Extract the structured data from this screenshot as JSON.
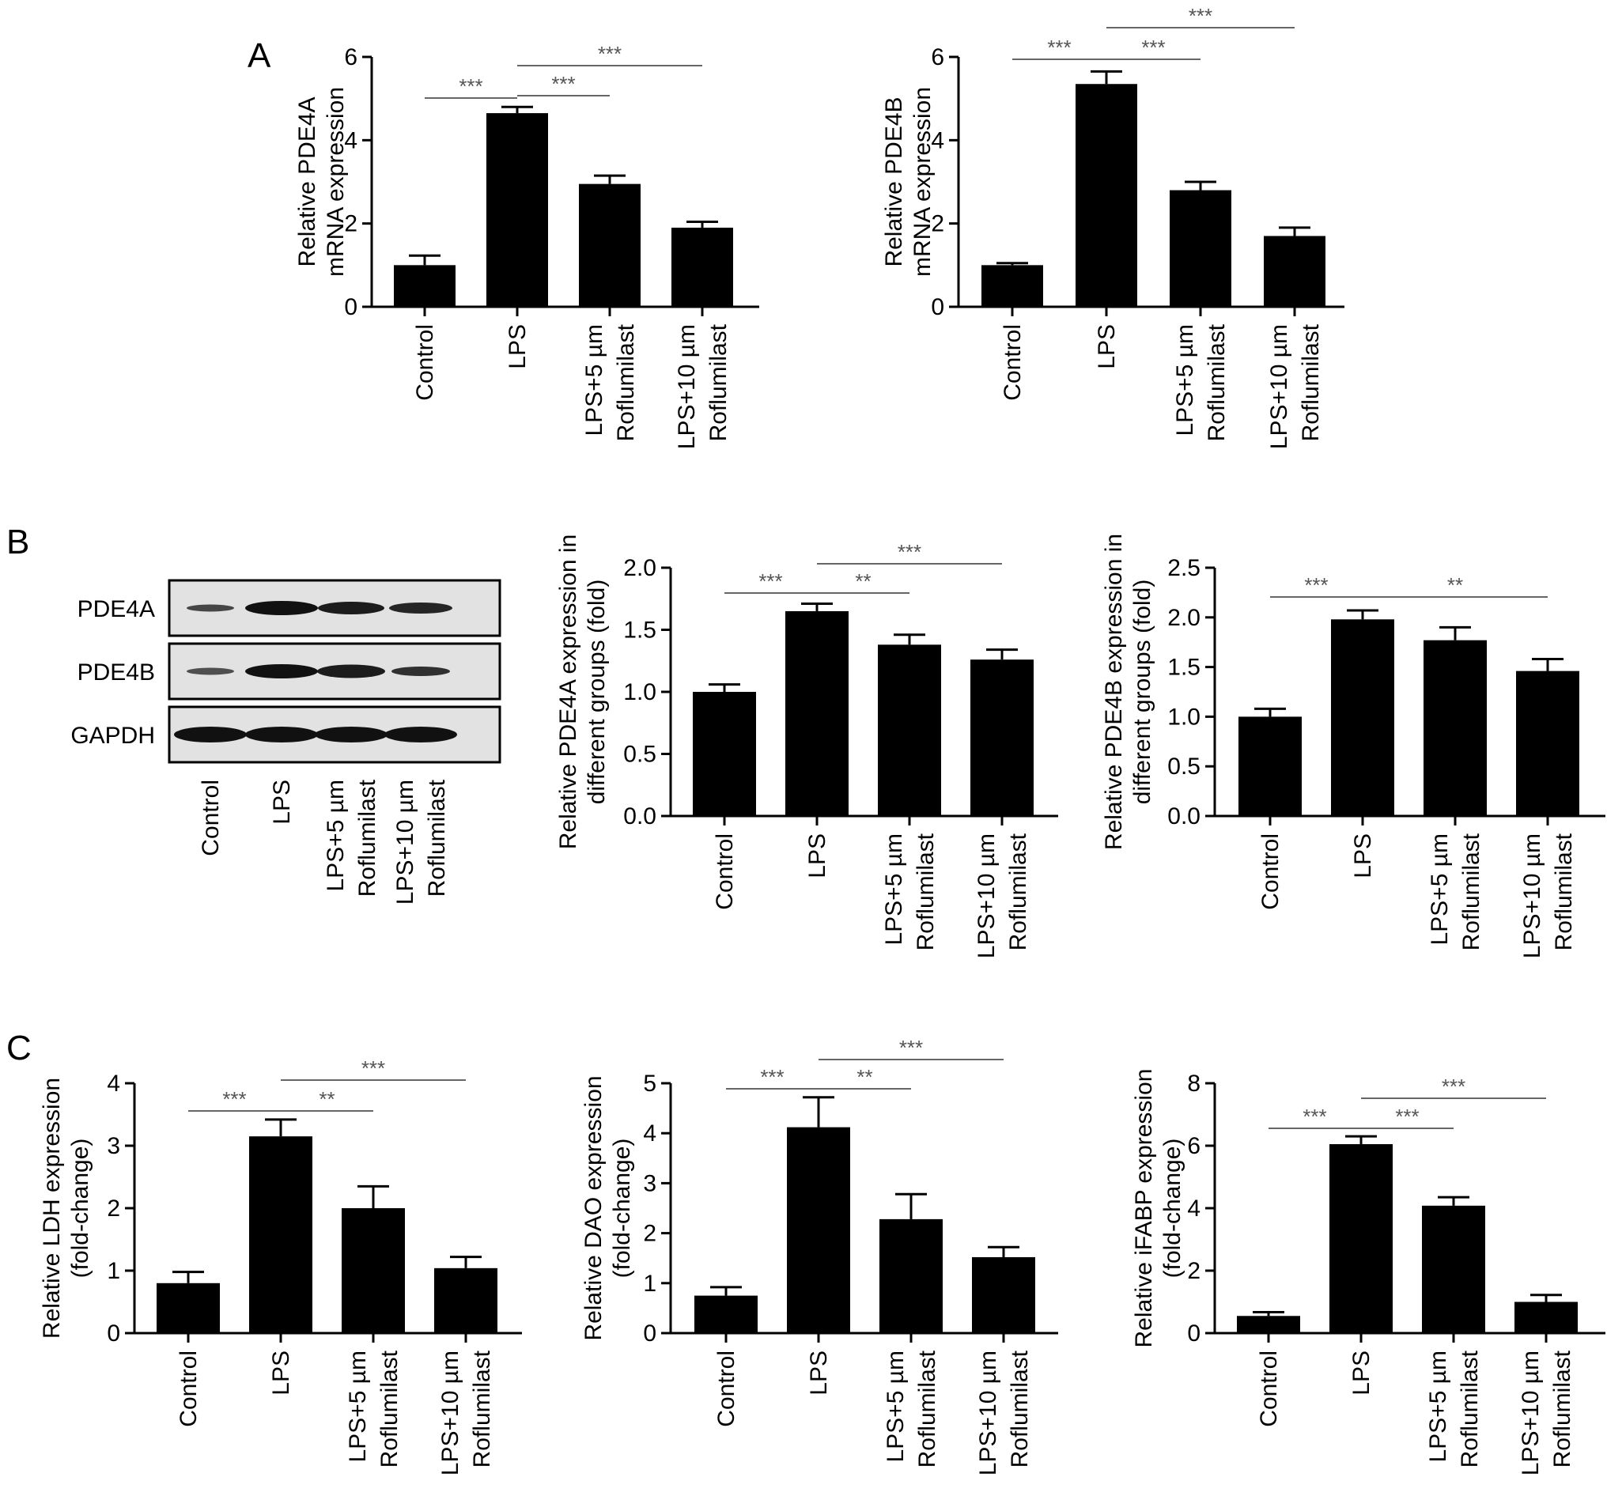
{
  "panel_labels": [
    "A",
    "B",
    "C"
  ],
  "western_blot": {
    "proteins": [
      "PDE4A",
      "PDE4B",
      "GAPDH"
    ],
    "lanes": [
      "Control",
      "LPS",
      "LPS+5 µm\nRoflumilast",
      "LPS+10 µm\nRoflumilast"
    ]
  },
  "chart_data": [
    {
      "id": "A1",
      "type": "bar",
      "categories": [
        "Control",
        "LPS",
        "LPS+5 µm\nRoflumilast",
        "LPS+10 µm\nRoflumilast"
      ],
      "values": [
        1.0,
        4.65,
        2.95,
        1.9
      ],
      "errors": [
        0.23,
        0.15,
        0.2,
        0.14
      ],
      "ylabel": "Relative PDE4A\nmRNA expression",
      "ylim": [
        0,
        6
      ],
      "yticks": [
        0,
        2,
        4,
        6
      ],
      "tick_decimals": 0,
      "significance": [
        {
          "from": 0,
          "to": 1,
          "label": "***"
        },
        {
          "from": 1,
          "to": 2,
          "label": "***"
        },
        {
          "from": 1,
          "to": 3,
          "label": "***"
        }
      ]
    },
    {
      "id": "A2",
      "type": "bar",
      "categories": [
        "Control",
        "LPS",
        "LPS+5 µm\nRoflumilast",
        "LPS+10 µm\nRoflumilast"
      ],
      "values": [
        1.0,
        5.35,
        2.8,
        1.7
      ],
      "errors": [
        0.05,
        0.3,
        0.2,
        0.2
      ],
      "ylabel": "Relative PDE4B\nmRNA expression",
      "ylim": [
        0,
        6
      ],
      "yticks": [
        0,
        2,
        4,
        6
      ],
      "tick_decimals": 0,
      "significance": [
        {
          "from": 0,
          "to": 1,
          "label": "***"
        },
        {
          "from": 1,
          "to": 2,
          "label": "***"
        },
        {
          "from": 1,
          "to": 3,
          "label": "***"
        }
      ]
    },
    {
      "id": "B1",
      "type": "bar",
      "categories": [
        "Control",
        "LPS",
        "LPS+5 µm\nRoflumilast",
        "LPS+10 µm\nRoflumilast"
      ],
      "values": [
        1.0,
        1.65,
        1.38,
        1.26
      ],
      "errors": [
        0.06,
        0.06,
        0.08,
        0.08
      ],
      "ylabel": "Relative PDE4A expression in\ndifferent groups (fold)",
      "ylim": [
        0,
        2.0
      ],
      "yticks": [
        0.0,
        0.5,
        1.0,
        1.5,
        2.0
      ],
      "tick_decimals": 1,
      "significance": [
        {
          "from": 0,
          "to": 1,
          "label": "***"
        },
        {
          "from": 1,
          "to": 2,
          "label": "**"
        },
        {
          "from": 1,
          "to": 3,
          "label": "***"
        }
      ]
    },
    {
      "id": "B2",
      "type": "bar",
      "categories": [
        "Control",
        "LPS",
        "LPS+5 µm\nRoflumilast",
        "LPS+10 µm\nRoflumilast"
      ],
      "values": [
        1.0,
        1.98,
        1.77,
        1.46
      ],
      "errors": [
        0.08,
        0.09,
        0.13,
        0.12
      ],
      "ylabel": "Relative PDE4B expression in\ndifferent groups (fold)",
      "ylim": [
        0,
        2.5
      ],
      "yticks": [
        0.0,
        0.5,
        1.0,
        1.5,
        2.0,
        2.5
      ],
      "tick_decimals": 1,
      "significance": [
        {
          "from": 0,
          "to": 1,
          "label": "***"
        },
        {
          "from": 1,
          "to": 3,
          "label": "**"
        }
      ]
    },
    {
      "id": "C1",
      "type": "bar",
      "categories": [
        "Control",
        "LPS",
        "LPS+5 µm\nRoflumilast",
        "LPS+10 µm\nRoflumilast"
      ],
      "values": [
        0.8,
        3.15,
        2.0,
        1.04
      ],
      "errors": [
        0.18,
        0.27,
        0.35,
        0.18
      ],
      "ylabel": "Relative LDH expression\n(fold-change)",
      "ylim": [
        0,
        4
      ],
      "yticks": [
        0,
        1,
        2,
        3,
        4
      ],
      "tick_decimals": 0,
      "significance": [
        {
          "from": 0,
          "to": 1,
          "label": "***"
        },
        {
          "from": 1,
          "to": 2,
          "label": "**"
        },
        {
          "from": 1,
          "to": 3,
          "label": "***"
        }
      ]
    },
    {
      "id": "C2",
      "type": "bar",
      "categories": [
        "Control",
        "LPS",
        "LPS+5 µm\nRoflumilast",
        "LPS+10 µm\nRoflumilast"
      ],
      "values": [
        0.75,
        4.12,
        2.28,
        1.52
      ],
      "errors": [
        0.17,
        0.6,
        0.5,
        0.2
      ],
      "ylabel": "Relative DAO expression\n(fold-change)",
      "ylim": [
        0,
        5
      ],
      "yticks": [
        0,
        1,
        2,
        3,
        4,
        5
      ],
      "tick_decimals": 0,
      "significance": [
        {
          "from": 0,
          "to": 1,
          "label": "***"
        },
        {
          "from": 1,
          "to": 2,
          "label": "**"
        },
        {
          "from": 1,
          "to": 3,
          "label": "***"
        }
      ]
    },
    {
      "id": "C3",
      "type": "bar",
      "categories": [
        "Control",
        "LPS",
        "LPS+5 µm\nRoflumilast",
        "LPS+10 µm\nRoflumilast"
      ],
      "values": [
        0.55,
        6.05,
        4.08,
        1.0
      ],
      "errors": [
        0.12,
        0.25,
        0.27,
        0.22
      ],
      "ylabel": "Relative iFABP expression\n(fold-change)",
      "ylim": [
        0,
        8
      ],
      "yticks": [
        0,
        2,
        4,
        6,
        8
      ],
      "tick_decimals": 0,
      "significance": [
        {
          "from": 0,
          "to": 1,
          "label": "***"
        },
        {
          "from": 1,
          "to": 2,
          "label": "***"
        },
        {
          "from": 1,
          "to": 3,
          "label": "***"
        }
      ]
    }
  ]
}
